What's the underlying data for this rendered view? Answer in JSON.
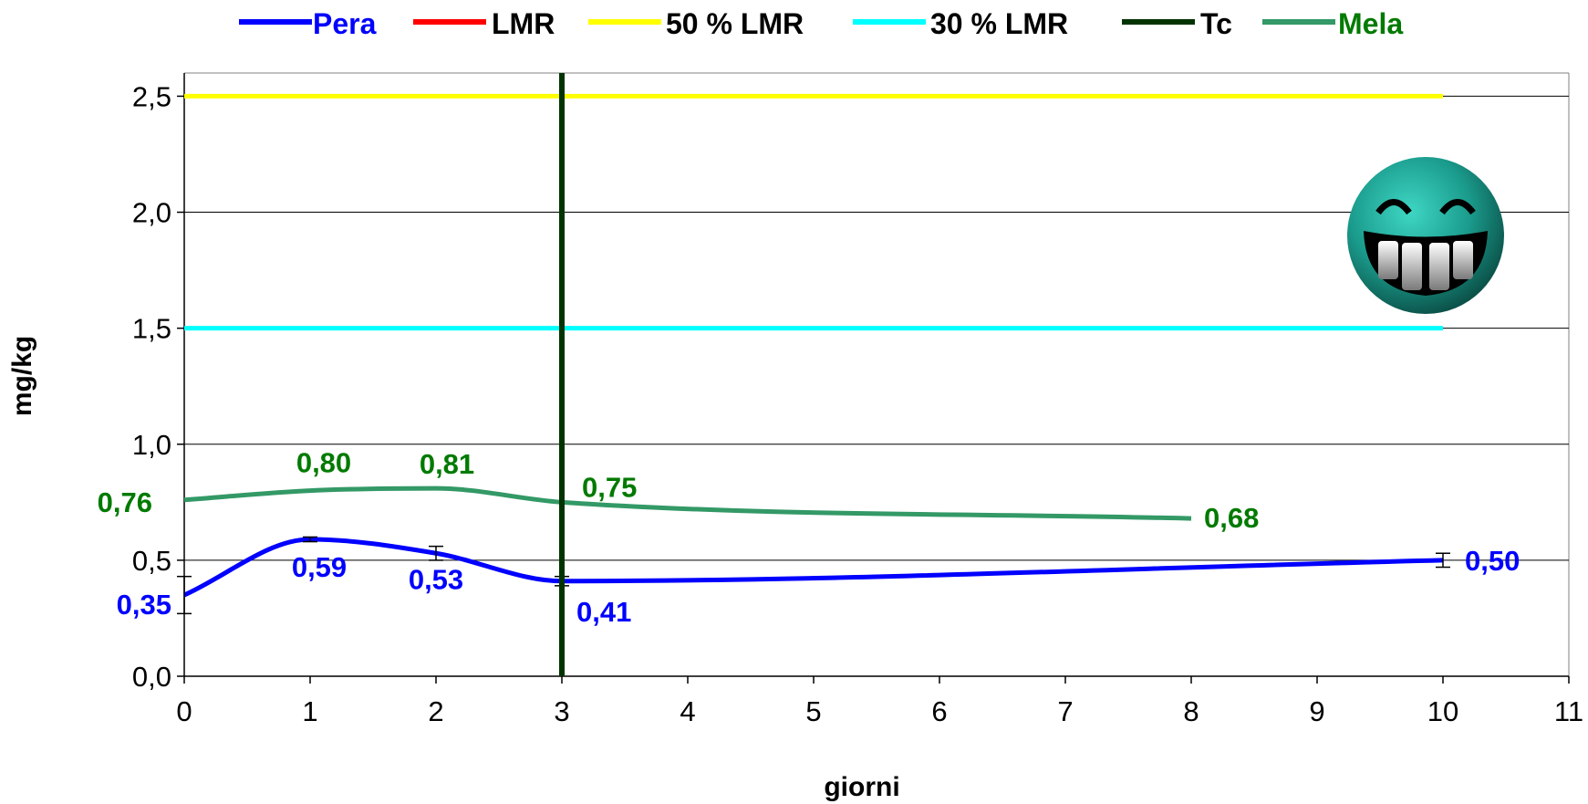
{
  "chart_data": {
    "type": "line",
    "xlabel": "giorni",
    "ylabel": "mg/kg",
    "xlim": [
      0,
      11
    ],
    "ylim": [
      0,
      2.6
    ],
    "x_ticks": [
      0,
      1,
      2,
      3,
      4,
      5,
      6,
      7,
      8,
      9,
      10,
      11
    ],
    "x_tick_labels": [
      "0",
      "1",
      "2",
      "3",
      "4",
      "5",
      "6",
      "7",
      "8",
      "9",
      "10",
      "11"
    ],
    "y_ticks": [
      0,
      0.5,
      1.0,
      1.5,
      2.0,
      2.5
    ],
    "y_tick_labels": [
      "0,0",
      "0,5",
      "1,0",
      "1,5",
      "2,0",
      "2,5"
    ],
    "grid": "horizontal",
    "legend_position": "top",
    "legend": [
      {
        "label": "Pera",
        "color": "#0000ff",
        "label_color": "#0000ff"
      },
      {
        "label": "LMR",
        "color": "#ff0000",
        "label_color": "#000000"
      },
      {
        "label": "50 % LMR",
        "color": "#ffff00",
        "label_color": "#000000"
      },
      {
        "label": "30 % LMR",
        "color": "#00ffff",
        "label_color": "#000000"
      },
      {
        "label": "Tc",
        "color": "#003300",
        "label_color": "#000000"
      },
      {
        "label": "Mela",
        "color": "#339966",
        "label_color": "#007a00"
      }
    ],
    "series": [
      {
        "name": "Pera",
        "color": "#0000ff",
        "x": [
          0,
          1,
          2,
          3,
          10
        ],
        "y": [
          0.35,
          0.59,
          0.53,
          0.41,
          0.5
        ],
        "labels": [
          "0,35",
          "0,59",
          "0,53",
          "0,41",
          "0,50"
        ],
        "error_bars": [
          0.08,
          0.01,
          0.03,
          0.02,
          0.03
        ]
      },
      {
        "name": "Mela",
        "color": "#339966",
        "label_color": "#007a00",
        "x": [
          0,
          1,
          2,
          3,
          8
        ],
        "y": [
          0.76,
          0.8,
          0.81,
          0.75,
          0.68
        ],
        "labels": [
          "0,76",
          "0,80",
          "0,81",
          "0,75",
          "0,68"
        ]
      },
      {
        "name": "50 % LMR",
        "color": "#ffff00",
        "x": [
          0,
          10
        ],
        "y": [
          2.5,
          2.5
        ]
      },
      {
        "name": "30 % LMR",
        "color": "#00ffff",
        "x": [
          0,
          10
        ],
        "y": [
          1.5,
          1.5
        ]
      },
      {
        "name": "Tc",
        "color": "#003300",
        "x": [
          3,
          3
        ],
        "y": [
          0,
          2.6
        ]
      }
    ],
    "decoration": "grinning-face-icon"
  }
}
